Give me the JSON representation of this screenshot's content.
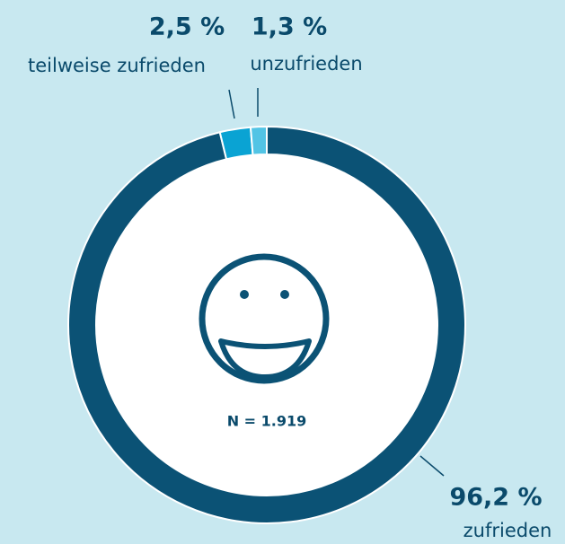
{
  "chart_data": {
    "type": "pie",
    "donut": true,
    "categories": [
      "zufrieden",
      "teilweise zufrieden",
      "unzufrieden"
    ],
    "values": [
      96.2,
      2.5,
      1.3
    ],
    "value_labels": [
      "96,2 %",
      "2,5 %",
      "1,3 %"
    ],
    "colors": [
      "#0b5275",
      "#0aa3d3",
      "#52c4e5"
    ],
    "annotation": "N = 1.919"
  }
}
